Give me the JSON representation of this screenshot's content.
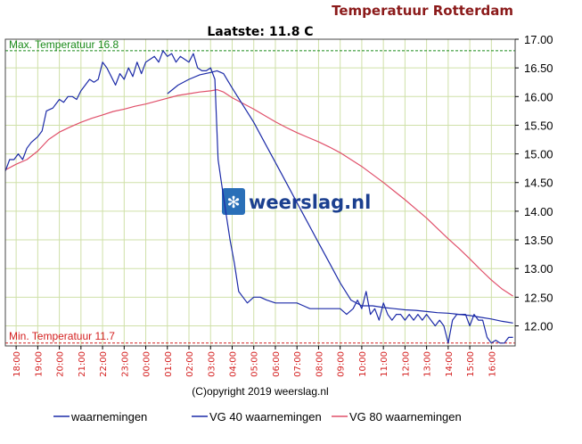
{
  "chart_data": {
    "type": "line",
    "title": "Temperatuur Rotterdam",
    "subtitle": "Laatste: 11.8  C",
    "copyright": "(C)opyright 2019 weerslag.nl",
    "watermark": "weerslag.nl",
    "xlabel": "",
    "ylabel": "",
    "ylim": [
      11.65,
      17.0
    ],
    "yticks": [
      "17.00",
      "16.50",
      "16.00",
      "15.50",
      "15.00",
      "14.50",
      "14.00",
      "13.50",
      "13.00",
      "12.50",
      "12.00"
    ],
    "ytick_values": [
      17.0,
      16.5,
      16.0,
      15.5,
      15.0,
      14.5,
      14.0,
      13.5,
      13.0,
      12.5,
      12.0
    ],
    "xlim": [
      17.5,
      41.1
    ],
    "xticks": [
      "18:00",
      "19:00",
      "20:00",
      "21:00",
      "22:00",
      "23:00",
      "00:00",
      "01:00",
      "02:00",
      "03:00",
      "04:00",
      "05:00",
      "06:00",
      "07:00",
      "08:00",
      "09:00",
      "10:00",
      "11:00",
      "12:00",
      "13:00",
      "14:00",
      "15:00",
      "16:00"
    ],
    "xtick_values": [
      18,
      19,
      20,
      21,
      22,
      23,
      24,
      25,
      26,
      27,
      28,
      29,
      30,
      31,
      32,
      33,
      34,
      35,
      36,
      37,
      38,
      39,
      40
    ],
    "grid": true,
    "legend_position": "bottom",
    "reference_lines": [
      {
        "label": "Max. Temperatuur 16.8",
        "value": 16.8,
        "color": "#1a8a1a"
      },
      {
        "label": "Min. Temperatuur 11.7",
        "value": 11.7,
        "color": "#d42020"
      }
    ],
    "series": [
      {
        "name": "waarnemingen",
        "color": "#1c2ba8",
        "x": [
          17.5,
          17.7,
          17.9,
          18.1,
          18.3,
          18.5,
          18.7,
          19.0,
          19.2,
          19.4,
          19.7,
          20.0,
          20.2,
          20.4,
          20.6,
          20.8,
          21.0,
          21.2,
          21.4,
          21.6,
          21.8,
          22.0,
          22.2,
          22.4,
          22.6,
          22.8,
          23.0,
          23.2,
          23.4,
          23.6,
          23.8,
          24.0,
          24.2,
          24.4,
          24.6,
          24.8,
          25.0,
          25.2,
          25.4,
          25.6,
          25.8,
          26.0,
          26.2,
          26.4,
          26.6,
          26.8,
          27.0,
          27.2,
          27.35,
          27.5,
          27.7,
          27.9,
          28.1,
          28.3,
          28.5,
          28.7,
          29.0,
          29.3,
          29.6,
          30.0,
          30.3,
          30.6,
          31.0,
          31.3,
          31.6,
          32.0,
          32.3,
          32.6,
          33.0,
          33.3,
          33.6,
          33.8,
          34.0,
          34.2,
          34.4,
          34.6,
          34.8,
          35.0,
          35.2,
          35.4,
          35.6,
          35.8,
          36.0,
          36.2,
          36.4,
          36.6,
          36.8,
          37.0,
          37.2,
          37.4,
          37.6,
          37.8,
          38.0,
          38.2,
          38.4,
          38.6,
          38.8,
          39.0,
          39.2,
          39.4,
          39.6,
          39.8,
          40.0,
          40.2,
          40.4,
          40.6,
          40.8,
          41.0
        ],
        "y": [
          14.7,
          14.9,
          14.9,
          15.0,
          14.9,
          15.1,
          15.2,
          15.3,
          15.4,
          15.75,
          15.8,
          15.95,
          15.9,
          16.0,
          16.0,
          15.95,
          16.1,
          16.2,
          16.3,
          16.25,
          16.3,
          16.6,
          16.5,
          16.35,
          16.2,
          16.4,
          16.3,
          16.5,
          16.35,
          16.6,
          16.4,
          16.6,
          16.65,
          16.7,
          16.6,
          16.8,
          16.7,
          16.75,
          16.6,
          16.7,
          16.65,
          16.6,
          16.75,
          16.5,
          16.45,
          16.45,
          16.5,
          16.3,
          14.9,
          14.5,
          14.0,
          13.5,
          13.1,
          12.6,
          12.5,
          12.4,
          12.5,
          12.5,
          12.45,
          12.4,
          12.4,
          12.4,
          12.4,
          12.35,
          12.3,
          12.3,
          12.3,
          12.3,
          12.3,
          12.2,
          12.3,
          12.45,
          12.3,
          12.6,
          12.2,
          12.3,
          12.1,
          12.4,
          12.2,
          12.1,
          12.2,
          12.2,
          12.1,
          12.2,
          12.1,
          12.2,
          12.1,
          12.2,
          12.1,
          12.0,
          12.1,
          12.0,
          11.7,
          12.1,
          12.2,
          12.2,
          12.2,
          12.0,
          12.2,
          12.1,
          12.1,
          11.8,
          11.7,
          11.75,
          11.7,
          11.7,
          11.8,
          11.8
        ]
      },
      {
        "name": "VG 40 waarnemingen",
        "color": "#1c2ba8",
        "x": [
          25.0,
          25.5,
          26.0,
          26.5,
          27.0,
          27.3,
          27.6,
          28.0,
          28.5,
          29.0,
          29.5,
          30.0,
          30.5,
          31.0,
          31.5,
          32.0,
          32.5,
          33.0,
          33.5,
          34.0,
          34.5,
          35.0,
          35.5,
          36.0,
          36.5,
          37.0,
          37.5,
          38.0,
          38.5,
          39.0,
          39.5,
          40.0,
          40.5,
          41.0
        ],
        "y": [
          16.05,
          16.2,
          16.3,
          16.38,
          16.42,
          16.45,
          16.4,
          16.15,
          15.85,
          15.55,
          15.2,
          14.85,
          14.5,
          14.15,
          13.8,
          13.45,
          13.1,
          12.75,
          12.45,
          12.35,
          12.35,
          12.32,
          12.3,
          12.28,
          12.27,
          12.25,
          12.23,
          12.22,
          12.2,
          12.18,
          12.15,
          12.12,
          12.08,
          12.05
        ]
      },
      {
        "name": "VG 80 waarnemingen",
        "color": "#e0506a",
        "x": [
          17.5,
          18.0,
          18.5,
          19.0,
          19.5,
          20.0,
          20.5,
          21.0,
          21.5,
          22.0,
          22.5,
          23.0,
          23.5,
          24.0,
          24.5,
          25.0,
          25.5,
          26.0,
          26.5,
          27.0,
          27.3,
          27.6,
          28.0,
          28.5,
          29.0,
          29.5,
          30.0,
          30.5,
          31.0,
          31.5,
          32.0,
          32.5,
          33.0,
          33.5,
          34.0,
          34.5,
          35.0,
          35.5,
          36.0,
          36.5,
          37.0,
          37.5,
          38.0,
          38.5,
          39.0,
          39.5,
          40.0,
          40.5,
          41.0
        ],
        "y": [
          14.72,
          14.82,
          14.9,
          15.05,
          15.25,
          15.38,
          15.47,
          15.55,
          15.62,
          15.68,
          15.74,
          15.78,
          15.83,
          15.87,
          15.92,
          15.97,
          16.02,
          16.05,
          16.08,
          16.1,
          16.12,
          16.08,
          15.98,
          15.88,
          15.78,
          15.67,
          15.56,
          15.46,
          15.37,
          15.29,
          15.21,
          15.12,
          15.02,
          14.9,
          14.78,
          14.64,
          14.5,
          14.35,
          14.2,
          14.04,
          13.88,
          13.7,
          13.52,
          13.35,
          13.17,
          12.98,
          12.8,
          12.64,
          12.52
        ]
      }
    ]
  }
}
